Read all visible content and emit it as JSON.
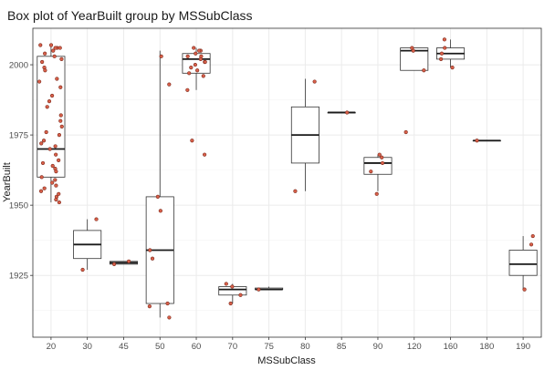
{
  "chart_data": {
    "type": "box",
    "title": "Box plot of YearBuilt group by MSSubClass",
    "xlabel": "MSSubClass",
    "ylabel": "YearBuilt",
    "ylim": [
      1903,
      2013
    ],
    "y_ticks": [
      1925,
      1950,
      1975,
      2000
    ],
    "grid": true,
    "point_color": "#d9604a",
    "categories": [
      "20",
      "30",
      "45",
      "50",
      "60",
      "70",
      "75",
      "80",
      "85",
      "90",
      "120",
      "160",
      "180",
      "190"
    ],
    "boxes": [
      {
        "category": "20",
        "min": 1951,
        "q1": 1960,
        "median": 1970,
        "q3": 2003,
        "max": 2007,
        "points": [
          2007,
          2007,
          2006,
          2006,
          2006,
          2005,
          2004,
          2003,
          2002,
          2001,
          1999,
          1998,
          1995,
          1994,
          1992,
          1989,
          1987,
          1985,
          1982,
          1980,
          1978,
          1976,
          1975,
          1973,
          1972,
          1971,
          1970,
          1968,
          1966,
          1965,
          1964,
          1963,
          1962,
          1960,
          1959,
          1958,
          1957,
          1956,
          1955,
          1954,
          1953,
          1952,
          1951
        ]
      },
      {
        "category": "30",
        "min": 1927,
        "q1": 1931,
        "median": 1936,
        "q3": 1941,
        "max": 1945,
        "points": [
          1945,
          1927
        ]
      },
      {
        "category": "45",
        "min": 1929,
        "q1": 1929,
        "median": 1929.5,
        "q3": 1930,
        "max": 1930,
        "points": [
          1930,
          1929
        ]
      },
      {
        "category": "50",
        "min": 1910,
        "q1": 1915,
        "median": 1934,
        "q3": 1953,
        "max": 2005,
        "points": [
          2003,
          1993,
          1953,
          1948,
          1934,
          1931,
          1915,
          1914,
          1910
        ]
      },
      {
        "category": "60",
        "min": 1991,
        "q1": 1997,
        "median": 2002,
        "q3": 2004,
        "max": 2006,
        "points": [
          2006,
          2005,
          2005,
          2004,
          2003,
          2003,
          2002,
          2001,
          2001,
          2000,
          1999,
          1998,
          1997,
          1996,
          1991,
          1973,
          1968
        ]
      },
      {
        "category": "70",
        "min": 1915,
        "q1": 1918,
        "median": 1920,
        "q3": 1921,
        "max": 1922,
        "points": [
          1922,
          1921,
          1918,
          1915
        ]
      },
      {
        "category": "75",
        "min": 1920,
        "q1": 1920,
        "median": 1920,
        "q3": 1920.5,
        "max": 1921,
        "points": [
          1920
        ]
      },
      {
        "category": "80",
        "min": 1955,
        "q1": 1965,
        "median": 1975,
        "q3": 1985,
        "max": 1995,
        "points": [
          1994,
          1955
        ]
      },
      {
        "category": "85",
        "min": 1983,
        "q1": 1983,
        "median": 1983,
        "q3": 1983,
        "max": 1983,
        "points": [
          1983
        ]
      },
      {
        "category": "90",
        "min": 1955,
        "q1": 1961,
        "median": 1965,
        "q3": 1967,
        "max": 1968,
        "points": [
          1968,
          1967,
          1965,
          1962,
          1954
        ]
      },
      {
        "category": "120",
        "min": 1998,
        "q1": 1998,
        "median": 2005,
        "q3": 2006,
        "max": 2006,
        "points": [
          2006,
          2005,
          1998,
          1976
        ]
      },
      {
        "category": "160",
        "min": 1999,
        "q1": 2002,
        "median": 2004,
        "q3": 2006,
        "max": 2009,
        "points": [
          2009,
          2006,
          2004,
          2002,
          1999
        ]
      },
      {
        "category": "180",
        "min": 1973,
        "q1": 1973,
        "median": 1973,
        "q3": 1973,
        "max": 1973,
        "points": [
          1973
        ]
      },
      {
        "category": "190",
        "min": 1920,
        "q1": 1925,
        "median": 1929,
        "q3": 1934,
        "max": 1939,
        "points": [
          1939,
          1936,
          1920
        ]
      }
    ]
  }
}
